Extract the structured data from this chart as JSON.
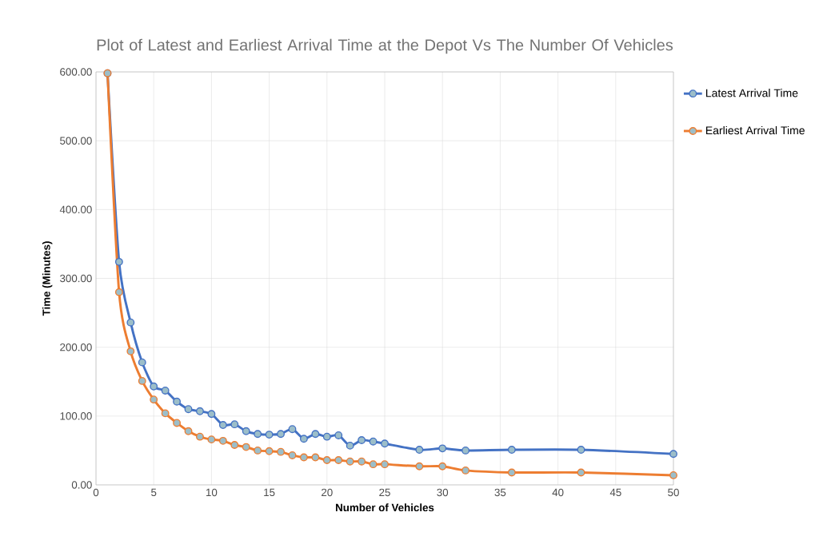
{
  "chart_data": {
    "type": "line",
    "title": "Plot of Latest and Earliest Arrival Time at the Depot Vs The Number Of Vehicles",
    "xlabel": "Number of Vehicles",
    "ylabel": "Time (Minutes)",
    "x": [
      1,
      2,
      3,
      4,
      5,
      6,
      7,
      8,
      9,
      10,
      11,
      12,
      13,
      14,
      15,
      16,
      17,
      18,
      19,
      20,
      21,
      22,
      23,
      24,
      25,
      28,
      30,
      32,
      36,
      42,
      50
    ],
    "series": [
      {
        "name": "Latest Arrival Time",
        "color": "#4472c4",
        "values": [
          598,
          324,
          236,
          178,
          143,
          137,
          121,
          110,
          107,
          103,
          87,
          88,
          78,
          74,
          73,
          74,
          81,
          67,
          74,
          70,
          72,
          57,
          65,
          63,
          60,
          51,
          53,
          50,
          51,
          51,
          45
        ]
      },
      {
        "name": "Earliest Arrival Time",
        "color": "#ed7d31",
        "values": [
          598,
          280,
          194,
          151,
          124,
          104,
          90,
          78,
          70,
          66,
          64,
          58,
          55,
          50,
          49,
          48,
          43,
          40,
          40,
          36,
          36,
          34,
          34,
          30,
          30,
          27,
          27,
          21,
          18,
          18,
          14
        ]
      }
    ],
    "xlim": [
      0,
      50
    ],
    "xticks": [
      0,
      5,
      10,
      15,
      20,
      25,
      30,
      35,
      40,
      45,
      50
    ],
    "ylim": [
      0,
      600
    ],
    "yticks": [
      {
        "value": 0,
        "label": "0.00"
      },
      {
        "value": 100,
        "label": "100.00"
      },
      {
        "value": 200,
        "label": "200.00"
      },
      {
        "value": 300,
        "label": "300.00"
      },
      {
        "value": 400,
        "label": "400.00"
      },
      {
        "value": 500,
        "label": "500.00"
      },
      {
        "value": 600,
        "label": "600.00"
      }
    ],
    "grid": true,
    "legend": "top right",
    "marker": "circle",
    "line_style": "solid"
  }
}
